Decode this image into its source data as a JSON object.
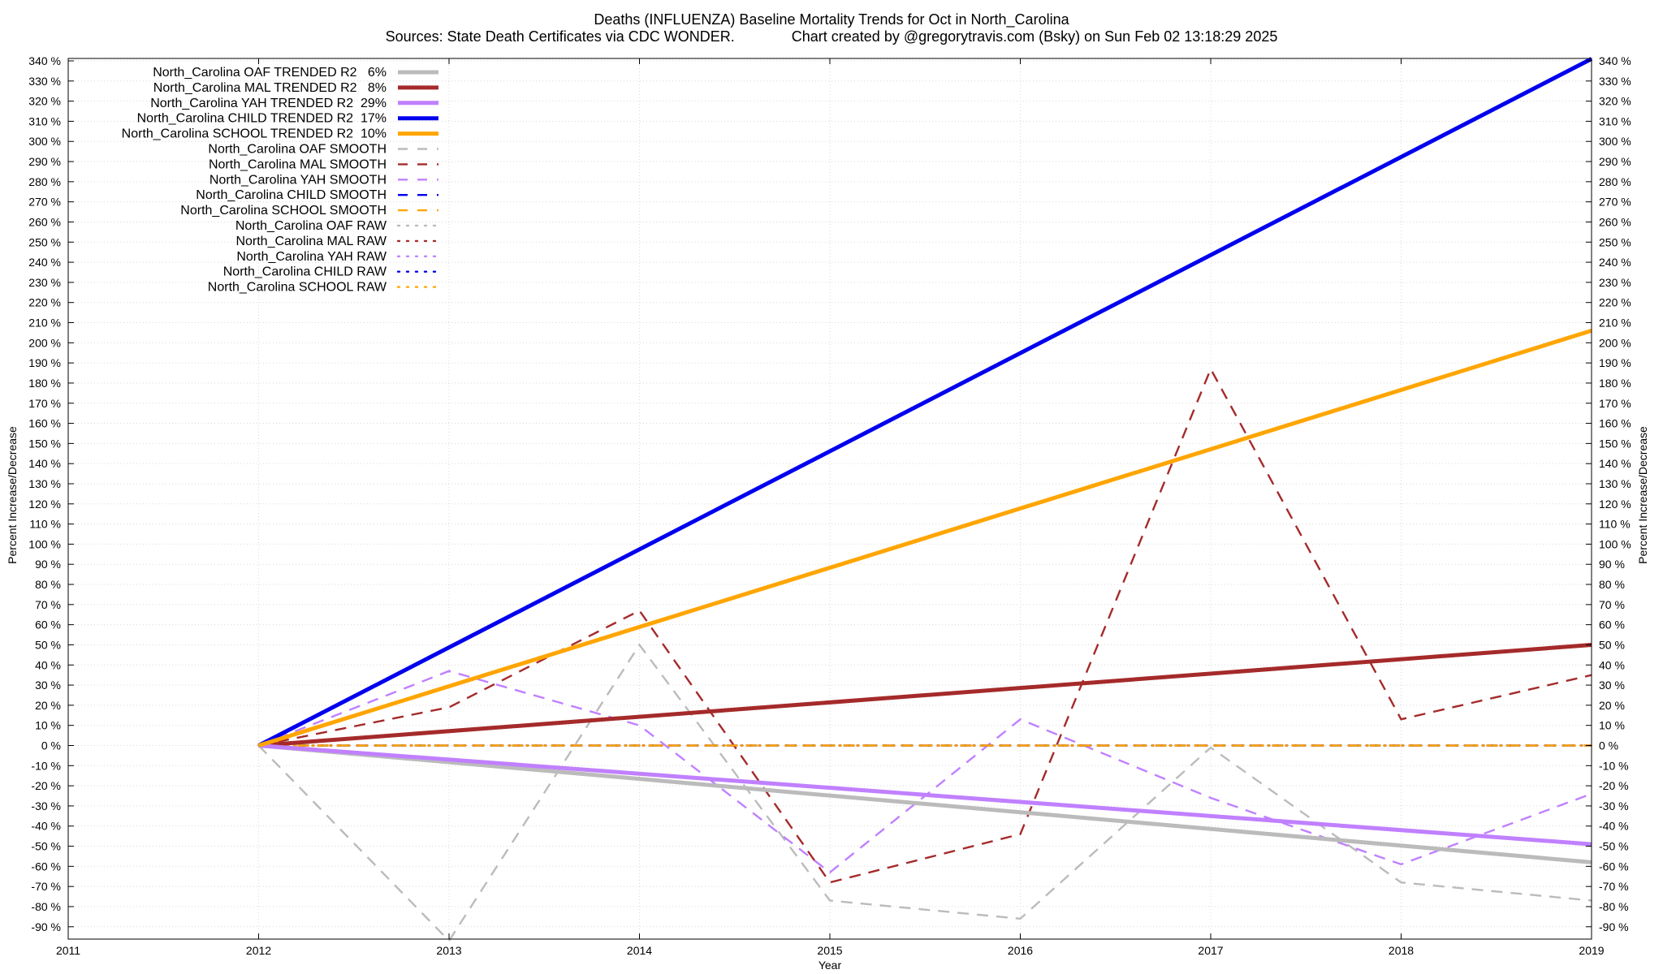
{
  "chart_data": {
    "type": "line",
    "title": "Deaths (INFLUENZA)  Baseline Mortality Trends for Oct in North_Carolina",
    "subtitle": "Sources: State Death Certificates via CDC WONDER.              Chart created by @gregorytravis.com (Bsky) on Sun Feb 02 13:18:29 2025",
    "xlabel": "Year",
    "ylabel": "Percent Increase/Decrease",
    "y2label": "Percent Increase/Decrease",
    "xlim": [
      2011,
      2019
    ],
    "ylim": [
      -100,
      340
    ],
    "x_ticks": [
      2011,
      2012,
      2013,
      2014,
      2015,
      2016,
      2017,
      2018,
      2019
    ],
    "y_ticks": [
      340,
      330,
      320,
      310,
      300,
      290,
      280,
      270,
      260,
      250,
      240,
      230,
      220,
      210,
      200,
      190,
      180,
      170,
      160,
      150,
      140,
      130,
      120,
      110,
      100,
      90,
      80,
      70,
      60,
      50,
      40,
      30,
      20,
      10,
      0,
      -10,
      -20,
      -30,
      -40,
      -50,
      -60,
      -70,
      -80,
      -90
    ],
    "y_tick_suffix": " %",
    "grid": true,
    "legend_position": "top-left",
    "series": [
      {
        "name": "North_Carolina OAF TRENDED R2   6%",
        "style": "solid",
        "color": "#bbbbbb",
        "x": [
          2012,
          2019
        ],
        "y": [
          0,
          -58
        ]
      },
      {
        "name": "North_Carolina MAL TRENDED R2   8%",
        "style": "solid",
        "color": "#a52a2a",
        "x": [
          2012,
          2019
        ],
        "y": [
          0,
          50
        ]
      },
      {
        "name": "North_Carolina YAH TRENDED R2  29%",
        "style": "solid",
        "color": "#c080ff",
        "x": [
          2012,
          2019
        ],
        "y": [
          0,
          -49
        ]
      },
      {
        "name": "North_Carolina CHILD TRENDED R2  17%",
        "style": "solid",
        "color": "#0000ee",
        "x": [
          2012,
          2019
        ],
        "y": [
          0,
          341
        ]
      },
      {
        "name": "North_Carolina SCHOOL TRENDED R2  10%",
        "style": "solid",
        "color": "#ffa500",
        "x": [
          2012,
          2019
        ],
        "y": [
          0,
          206
        ]
      },
      {
        "name": "North_Carolina OAF SMOOTH",
        "style": "dashed",
        "color": "#bbbbbb",
        "x": [
          2012,
          2013,
          2014,
          2015,
          2016,
          2017,
          2018,
          2019
        ],
        "y": [
          0,
          -97,
          50,
          -77,
          -86,
          -1,
          -68,
          -77
        ]
      },
      {
        "name": "North_Carolina MAL SMOOTH",
        "style": "dashed",
        "color": "#a52a2a",
        "x": [
          2012,
          2013,
          2014,
          2015,
          2016,
          2017,
          2018,
          2019
        ],
        "y": [
          0,
          19,
          67,
          -68,
          -44,
          187,
          13,
          35
        ]
      },
      {
        "name": "North_Carolina YAH SMOOTH",
        "style": "dashed",
        "color": "#c080ff",
        "x": [
          2012,
          2013,
          2014,
          2015,
          2016,
          2017,
          2018,
          2019
        ],
        "y": [
          0,
          37,
          10,
          -63,
          13,
          -26,
          -59,
          -24
        ]
      },
      {
        "name": "North_Carolina CHILD SMOOTH",
        "style": "dashed",
        "color": "#0000ee",
        "x": [
          2012,
          2019
        ],
        "y": [
          0,
          0
        ]
      },
      {
        "name": "North_Carolina SCHOOL SMOOTH",
        "style": "dashed",
        "color": "#ffa500",
        "x": [
          2012,
          2019
        ],
        "y": [
          0,
          0
        ]
      },
      {
        "name": "North_Carolina OAF RAW",
        "style": "dotted",
        "color": "#bbbbbb",
        "x": [
          2012,
          2019
        ],
        "y": [
          0,
          0
        ]
      },
      {
        "name": "North_Carolina MAL RAW",
        "style": "dotted",
        "color": "#a52a2a",
        "x": [
          2012,
          2019
        ],
        "y": [
          0,
          0
        ]
      },
      {
        "name": "North_Carolina YAH RAW",
        "style": "dotted",
        "color": "#c080ff",
        "x": [
          2012,
          2019
        ],
        "y": [
          0,
          0
        ]
      },
      {
        "name": "North_Carolina CHILD RAW",
        "style": "dotted",
        "color": "#0000ee",
        "x": [
          2012,
          2019
        ],
        "y": [
          0,
          0
        ]
      },
      {
        "name": "North_Carolina SCHOOL RAW",
        "style": "dotted",
        "color": "#ffa500",
        "x": [
          2012,
          2019
        ],
        "y": [
          0,
          0
        ]
      }
    ]
  }
}
